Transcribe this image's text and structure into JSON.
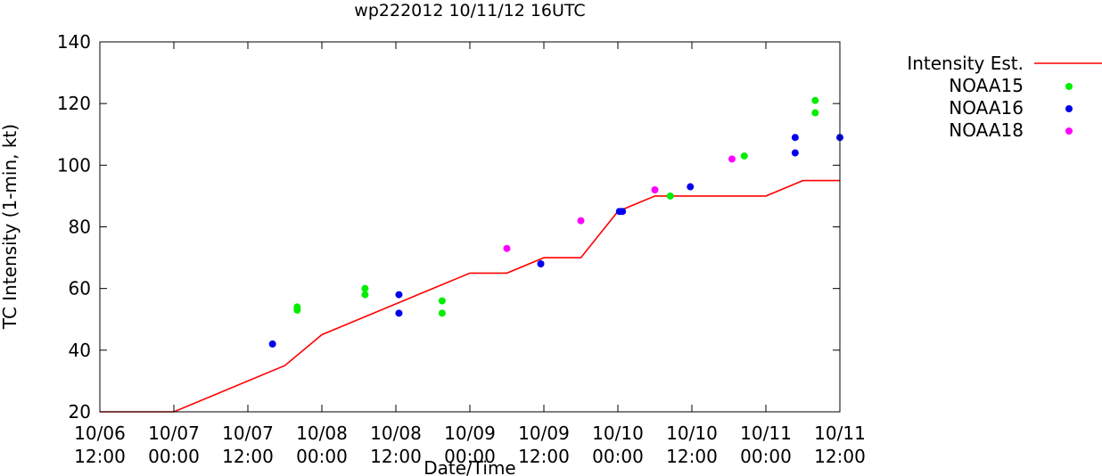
{
  "chart_data": {
    "type": "scatter",
    "title": "wp222012 10/11/12 16UTC",
    "xlabel": "Date/Time",
    "ylabel": "TC Intensity (1-min, kt)",
    "x_unit": "UTC datetime",
    "xlim": [
      "2012-10-06T12:00",
      "2012-10-11T12:00"
    ],
    "ylim": [
      20,
      140
    ],
    "y_ticks": [
      20,
      40,
      60,
      80,
      100,
      120,
      140
    ],
    "x_ticks": [
      {
        "x": "2012-10-06T12:00",
        "date": "10/06",
        "time": "12:00"
      },
      {
        "x": "2012-10-07T00:00",
        "date": "10/07",
        "time": "00:00"
      },
      {
        "x": "2012-10-07T12:00",
        "date": "10/07",
        "time": "12:00"
      },
      {
        "x": "2012-10-08T00:00",
        "date": "10/08",
        "time": "00:00"
      },
      {
        "x": "2012-10-08T12:00",
        "date": "10/08",
        "time": "12:00"
      },
      {
        "x": "2012-10-09T00:00",
        "date": "10/09",
        "time": "00:00"
      },
      {
        "x": "2012-10-09T12:00",
        "date": "10/09",
        "time": "12:00"
      },
      {
        "x": "2012-10-10T00:00",
        "date": "10/10",
        "time": "00:00"
      },
      {
        "x": "2012-10-10T12:00",
        "date": "10/10",
        "time": "12:00"
      },
      {
        "x": "2012-10-11T00:00",
        "date": "10/11",
        "time": "00:00"
      },
      {
        "x": "2012-10-11T12:00",
        "date": "10/11",
        "time": "12:00"
      }
    ],
    "grid": false,
    "legend_position": "outside-right-top",
    "series": [
      {
        "name": "Intensity Est.",
        "kind": "line",
        "color": "#ff0000",
        "points": [
          {
            "x": "2012-10-06T12:00",
            "y": 20
          },
          {
            "x": "2012-10-07T00:00",
            "y": 20
          },
          {
            "x": "2012-10-07T18:00",
            "y": 35
          },
          {
            "x": "2012-10-08T00:00",
            "y": 45
          },
          {
            "x": "2012-10-09T00:00",
            "y": 65
          },
          {
            "x": "2012-10-09T06:00",
            "y": 65
          },
          {
            "x": "2012-10-09T12:00",
            "y": 70
          },
          {
            "x": "2012-10-09T18:00",
            "y": 70
          },
          {
            "x": "2012-10-10T00:00",
            "y": 85
          },
          {
            "x": "2012-10-10T06:00",
            "y": 90
          },
          {
            "x": "2012-10-11T00:00",
            "y": 90
          },
          {
            "x": "2012-10-11T06:00",
            "y": 95
          },
          {
            "x": "2012-10-11T12:00",
            "y": 95
          }
        ]
      },
      {
        "name": "NOAA15",
        "kind": "scatter",
        "color": "#00ee00",
        "points": [
          {
            "x": "2012-10-07T20:00",
            "y": 54
          },
          {
            "x": "2012-10-07T20:00",
            "y": 53
          },
          {
            "x": "2012-10-08T07:00",
            "y": 60
          },
          {
            "x": "2012-10-08T07:00",
            "y": 58
          },
          {
            "x": "2012-10-08T19:30",
            "y": 56
          },
          {
            "x": "2012-10-08T19:30",
            "y": 52
          },
          {
            "x": "2012-10-10T08:30",
            "y": 90
          },
          {
            "x": "2012-10-10T20:30",
            "y": 103
          },
          {
            "x": "2012-10-11T08:00",
            "y": 121
          },
          {
            "x": "2012-10-11T08:00",
            "y": 117
          }
        ]
      },
      {
        "name": "NOAA16",
        "kind": "scatter",
        "color": "#0000ee",
        "points": [
          {
            "x": "2012-10-07T16:00",
            "y": 42
          },
          {
            "x": "2012-10-08T12:30",
            "y": 58
          },
          {
            "x": "2012-10-08T12:30",
            "y": 52
          },
          {
            "x": "2012-10-09T11:30",
            "y": 68
          },
          {
            "x": "2012-10-10T00:15",
            "y": 85
          },
          {
            "x": "2012-10-10T00:45",
            "y": 85
          },
          {
            "x": "2012-10-10T11:45",
            "y": 93
          },
          {
            "x": "2012-10-11T04:45",
            "y": 109
          },
          {
            "x": "2012-10-11T04:45",
            "y": 104
          },
          {
            "x": "2012-10-11T12:00",
            "y": 109
          }
        ]
      },
      {
        "name": "NOAA18",
        "kind": "scatter",
        "color": "#ff00ff",
        "points": [
          {
            "x": "2012-10-09T06:00",
            "y": 73
          },
          {
            "x": "2012-10-09T18:00",
            "y": 82
          },
          {
            "x": "2012-10-10T06:00",
            "y": 92
          },
          {
            "x": "2012-10-10T18:30",
            "y": 102
          }
        ]
      }
    ]
  }
}
